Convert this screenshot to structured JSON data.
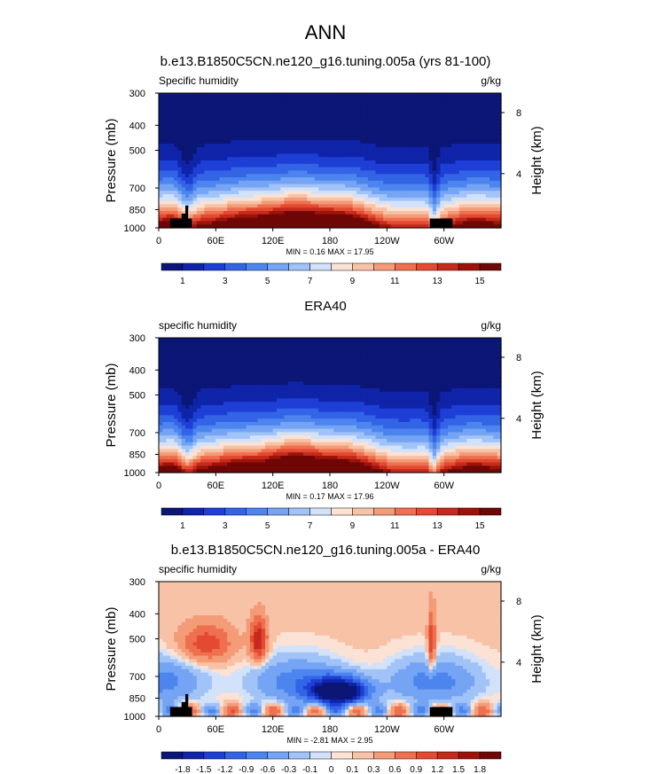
{
  "page_title": "ANN",
  "chart_data": [
    {
      "type": "heatmap",
      "title": "b.e13.B1850C5CN.ne120_g16.tuning.005a (yrs 81-100)",
      "field_label": "Specific humidity",
      "units": "g/kg",
      "ylabel_left": "Pressure (mb)",
      "ylabel_right": "Height (km)",
      "x_ticks": [
        "0",
        "60E",
        "120E",
        "180",
        "120W",
        "60W"
      ],
      "x_tick_values": [
        0,
        60,
        120,
        180,
        240,
        300
      ],
      "xlim": [
        0,
        360
      ],
      "y_ticks": [
        "300",
        "400",
        "500",
        "700",
        "850",
        "1000"
      ],
      "y_tick_values": [
        300,
        400,
        500,
        700,
        850,
        1000
      ],
      "ylim": [
        1000,
        300
      ],
      "height_ticks": [
        "8",
        "4"
      ],
      "min_max_label": "MIN =  0.16  MAX =  17.95",
      "min": 0.16,
      "max": 17.95,
      "colorbar_ticks": [
        "1",
        "3",
        "5",
        "7",
        "9",
        "11",
        "13",
        "15"
      ],
      "colorbar_colors": [
        "#0b1677",
        "#0f24a8",
        "#1e3fd6",
        "#3464e6",
        "#4d85ee",
        "#74a4f3",
        "#a1c3f7",
        "#d2e2fa",
        "#fbe2d4",
        "#f8c2a6",
        "#f49b77",
        "#ef7050",
        "#e34a31",
        "#c52a1c",
        "#9c1409",
        "#6f0707"
      ]
    },
    {
      "type": "heatmap",
      "title": "ERA40",
      "field_label": "specific humidity",
      "units": "g/kg",
      "ylabel_left": "Pressure (mb)",
      "ylabel_right": "Height (km)",
      "x_ticks": [
        "0",
        "60E",
        "120E",
        "180",
        "120W",
        "60W"
      ],
      "x_tick_values": [
        0,
        60,
        120,
        180,
        240,
        300
      ],
      "xlim": [
        0,
        360
      ],
      "y_ticks": [
        "300",
        "400",
        "500",
        "700",
        "850",
        "1000"
      ],
      "y_tick_values": [
        300,
        400,
        500,
        700,
        850,
        1000
      ],
      "ylim": [
        1000,
        300
      ],
      "height_ticks": [
        "8",
        "4"
      ],
      "min_max_label": "MIN =  0.17  MAX =  17.96",
      "min": 0.17,
      "max": 17.96,
      "colorbar_ticks": [
        "1",
        "3",
        "5",
        "7",
        "9",
        "11",
        "13",
        "15"
      ],
      "colorbar_colors": [
        "#0b1677",
        "#0f24a8",
        "#1e3fd6",
        "#3464e6",
        "#4d85ee",
        "#74a4f3",
        "#a1c3f7",
        "#d2e2fa",
        "#fbe2d4",
        "#f8c2a6",
        "#f49b77",
        "#ef7050",
        "#e34a31",
        "#c52a1c",
        "#9c1409",
        "#6f0707"
      ]
    },
    {
      "type": "heatmap",
      "title": "b.e13.B1850C5CN.ne120_g16.tuning.005a - ERA40",
      "field_label": "specific humidity",
      "units": "g/kg",
      "ylabel_left": "Pressure (mb)",
      "ylabel_right": "Height (km)",
      "x_ticks": [
        "0",
        "60E",
        "120E",
        "180",
        "120W",
        "60W"
      ],
      "x_tick_values": [
        0,
        60,
        120,
        180,
        240,
        300
      ],
      "xlim": [
        0,
        360
      ],
      "y_ticks": [
        "300",
        "400",
        "500",
        "700",
        "850",
        "1000"
      ],
      "y_tick_values": [
        300,
        400,
        500,
        700,
        850,
        1000
      ],
      "ylim": [
        1000,
        300
      ],
      "height_ticks": [
        "8",
        "4"
      ],
      "min_max_label": "MIN = -2.81  MAX =  2.95",
      "min": -2.81,
      "max": 2.95,
      "colorbar_ticks": [
        "-1.8",
        "-1.5",
        "-1.2",
        "-0.9",
        "-0.6",
        "-0.3",
        "-0.1",
        "0",
        "0.1",
        "0.3",
        "0.6",
        "0.9",
        "1.2",
        "1.5",
        "1.8"
      ],
      "colorbar_colors": [
        "#0b1677",
        "#0f24a8",
        "#1e3fd6",
        "#3464e6",
        "#4d85ee",
        "#74a4f3",
        "#a1c3f7",
        "#d2e2fa",
        "#fbe2d4",
        "#f8c2a6",
        "#f49b77",
        "#ef7050",
        "#e34a31",
        "#c52a1c",
        "#9c1409",
        "#6f0707"
      ]
    }
  ]
}
